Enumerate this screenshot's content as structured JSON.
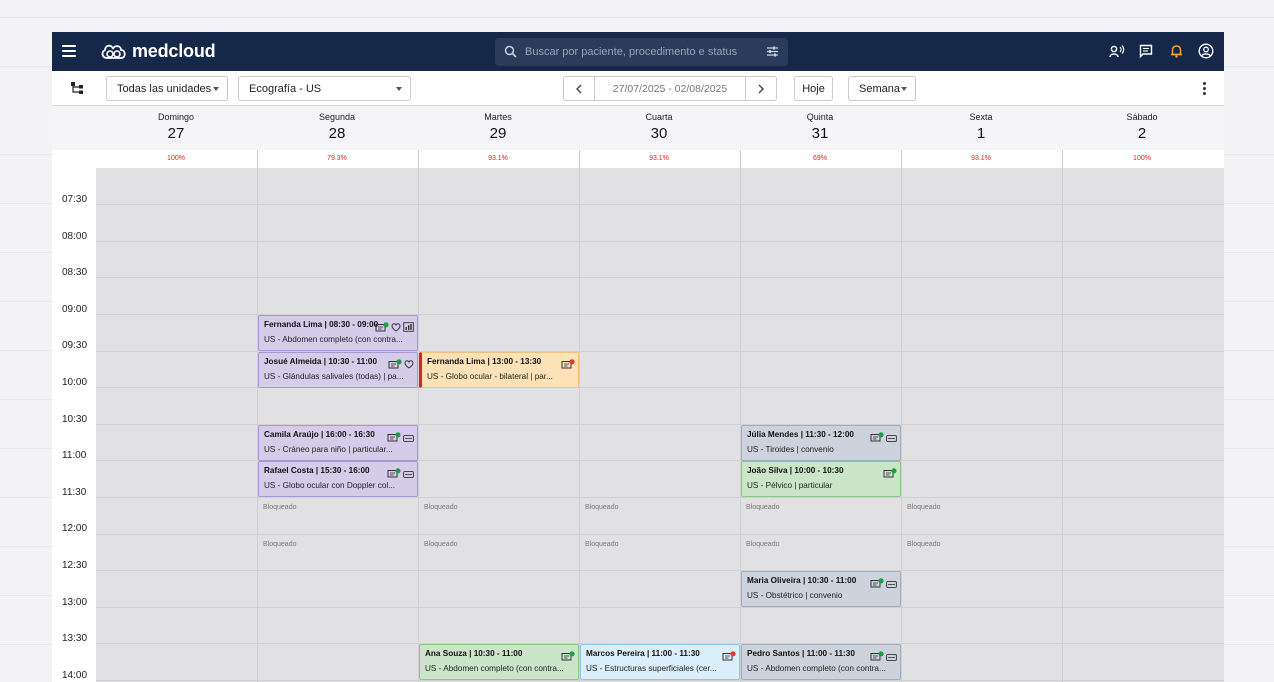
{
  "app": {
    "logo": "medcloud"
  },
  "search": {
    "placeholder": "Buscar por paciente, procedimento e status"
  },
  "toolbar": {
    "units_select": "Todas las unidades",
    "modality_select": "Ecografía - US",
    "date_range": "27/07/2025 - 02/08/2025",
    "today_button": "Hoje",
    "view_select": "Semana"
  },
  "days": [
    {
      "name": "Domingo",
      "date": "27",
      "occupancy": "100%"
    },
    {
      "name": "Segunda",
      "date": "28",
      "occupancy": "79.3%"
    },
    {
      "name": "Martes",
      "date": "29",
      "occupancy": "93.1%"
    },
    {
      "name": "Cuarta",
      "date": "30",
      "occupancy": "93.1%"
    },
    {
      "name": "Quinta",
      "date": "31",
      "occupancy": "69%"
    },
    {
      "name": "Sexta",
      "date": "1",
      "occupancy": "93.1%"
    },
    {
      "name": "Sábado",
      "date": "2",
      "occupancy": "100%"
    }
  ],
  "times": [
    "07:30",
    "08:00",
    "08:30",
    "09:00",
    "09:30",
    "10:00",
    "10:30",
    "11:00",
    "11:30",
    "12:00",
    "12:30",
    "13:00",
    "13:30",
    "14:00"
  ],
  "blocked_label": "Bloqueado",
  "blocked": [
    {
      "day": 1,
      "slot": 9
    },
    {
      "day": 2,
      "slot": 9
    },
    {
      "day": 3,
      "slot": 9
    },
    {
      "day": 4,
      "slot": 9
    },
    {
      "day": 5,
      "slot": 9
    },
    {
      "day": 1,
      "slot": 10
    },
    {
      "day": 2,
      "slot": 10
    },
    {
      "day": 3,
      "slot": 10
    },
    {
      "day": 4,
      "slot": 10
    },
    {
      "day": 5,
      "slot": 10
    }
  ],
  "events": [
    {
      "day": 1,
      "slot": 4,
      "color": "purple",
      "title": "Fernanda Lima | 08:30 - 09:00",
      "desc": "US - Abdomen completo (con contra...",
      "icons": [
        "card",
        "heart",
        "chart"
      ]
    },
    {
      "day": 1,
      "slot": 5,
      "color": "purple",
      "title": "Josué Almeida | 10:30 - 11:00",
      "desc": "US -  Glándulas salivales (todas) | pa...",
      "icons": [
        "card",
        "heart"
      ]
    },
    {
      "day": 2,
      "slot": 5,
      "color": "orange",
      "title": "Fernanda Lima | 13:00 - 13:30",
      "desc": "US - Globo ocular - bilateral | par...",
      "icons": [
        "card-red"
      ]
    },
    {
      "day": 1,
      "slot": 7,
      "color": "purple",
      "title": "Camila Araújo | 16:00 - 16:30",
      "desc": "US -  Cráneo para niño | particular...",
      "icons": [
        "card",
        "tag"
      ]
    },
    {
      "day": 1,
      "slot": 8,
      "color": "purple",
      "title": "Rafael Costa | 15:30 - 16:00",
      "desc": "US - Globo ocular con Doppler col...",
      "icons": [
        "card",
        "tag"
      ]
    },
    {
      "day": 4,
      "slot": 7,
      "color": "grey",
      "title": "Júlia Mendes | 11:30 - 12:00",
      "desc": "US - Tiroides | convenio",
      "icons": [
        "card",
        "tag"
      ]
    },
    {
      "day": 4,
      "slot": 8,
      "color": "green",
      "title": "João Silva | 10:00 - 10:30",
      "desc": "US - Pélvico | particular",
      "icons": [
        "card"
      ]
    },
    {
      "day": 4,
      "slot": 11,
      "color": "grey",
      "title": "Maria Oliveira | 10:30 - 11:00",
      "desc": "US - Obstétrico | convenio",
      "icons": [
        "card",
        "tag"
      ]
    },
    {
      "day": 2,
      "slot": 13,
      "color": "green",
      "title": "Ana Souza | 10:30 - 11:00",
      "desc": "US - Abdomen completo (con contra...",
      "icons": [
        "card"
      ]
    },
    {
      "day": 3,
      "slot": 13,
      "color": "blue",
      "title": "Marcos Pereira | 11:00 - 11:30",
      "desc": "US - Estructuras superficiales (cer...",
      "icons": [
        "card-red"
      ]
    },
    {
      "day": 4,
      "slot": 13,
      "color": "grey",
      "title": "Pedro Santos | 11:00 - 11:30",
      "desc": "US - Abdomen completo (con contra...",
      "icons": [
        "card",
        "tag"
      ]
    }
  ]
}
